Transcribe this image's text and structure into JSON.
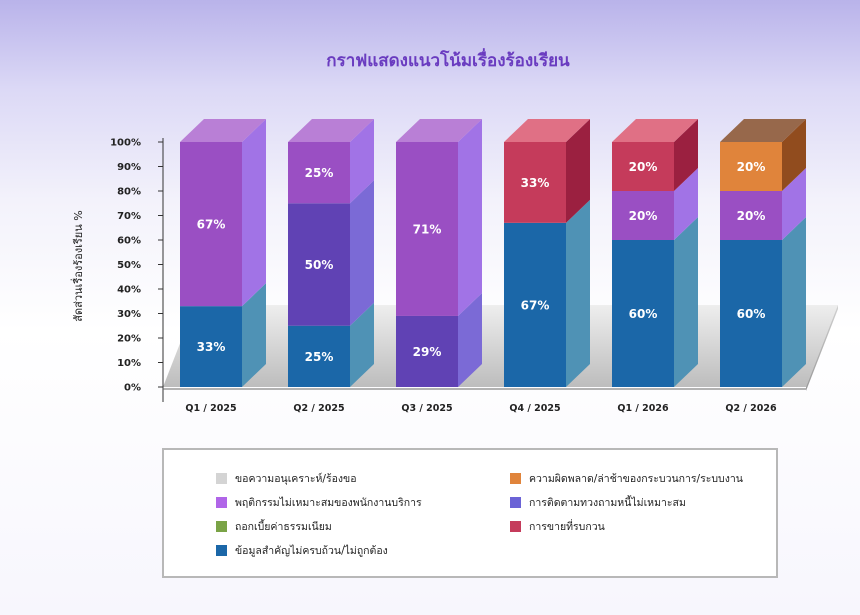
{
  "chart_data": {
    "type": "bar",
    "stacked": true,
    "title": "กราฟแสดงแนวโน้มเรื่องร้องเรียน",
    "ylabel": "สัดส่วนเรื่องร้องเรียน %",
    "xlabel": "",
    "ylim": [
      0,
      100
    ],
    "yticks": [
      "0%",
      "10%",
      "20%",
      "30%",
      "40%",
      "50%",
      "60%",
      "70%",
      "80%",
      "90%",
      "100%"
    ],
    "categories": [
      "Q1 / 2025",
      "Q2 / 2025",
      "Q3 / 2025",
      "Q4 / 2025",
      "Q1 / 2026",
      "Q2 / 2026"
    ],
    "series": [
      {
        "name": "ข้อมูลสำคัญไม่ครบถ้วน/ไม่ถูกต้อง",
        "color": "#1b67a8",
        "side": "#4f92b5",
        "values": [
          33,
          25,
          0,
          67,
          60,
          60
        ],
        "labels": [
          "33%",
          "25%",
          "",
          "67%",
          "60%",
          "60%"
        ]
      },
      {
        "name": "การติดตามทวงถามหนี้ไม่เหมาะสม",
        "color": "#6042b4",
        "side": "#7b6ad6",
        "values": [
          0,
          50,
          29,
          0,
          0,
          0
        ],
        "labels": [
          "",
          "50%",
          "29%",
          "",
          "",
          ""
        ]
      },
      {
        "name": "พฤติกรรมไม่เหมาะสมของพนักงานบริการ",
        "color": "#9a4fc3",
        "side": "#a173e6",
        "values": [
          67,
          25,
          71,
          0,
          20,
          20
        ],
        "labels": [
          "67%",
          "25%",
          "71%",
          "",
          "20%",
          "20%"
        ]
      },
      {
        "name": "การขายที่รบกวน",
        "color": "#c53b5b",
        "side": "#9b2040",
        "values": [
          0,
          0,
          0,
          33,
          20,
          0
        ],
        "labels": [
          "",
          "",
          "",
          "33%",
          "20%",
          ""
        ]
      },
      {
        "name": "ความผิดพลาด/ล่าช้าของกระบวนการ/ระบบงาน",
        "color": "#e0843b",
        "side": "#914c1e",
        "values": [
          0,
          0,
          0,
          0,
          0,
          20
        ],
        "labels": [
          "",
          "",
          "",
          "",
          "",
          "20%"
        ]
      }
    ],
    "legend": {
      "position": "bottom",
      "left": [
        {
          "name": "ขอความอนุเคราะห์/ร้องขอ",
          "color": "#d4d4d4"
        },
        {
          "name": "พฤติกรรมไม่เหมาะสมของพนักงานบริการ",
          "color": "#b065e8"
        },
        {
          "name": "ถอกเบี้ยค่าธรรมเนียม",
          "color": "#7aa346"
        },
        {
          "name": "ข้อมูลสำคัญไม่ครบถ้วน/ไม่ถูกต้อง",
          "color": "#1b67a8"
        }
      ],
      "right": [
        {
          "name": "ความผิดพลาด/ล่าช้าของกระบวนการ/ระบบงาน",
          "color": "#e0843b"
        },
        {
          "name": "การติดตามทวงถามหนี้ไม่เหมาะสม",
          "color": "#6b63d6"
        },
        {
          "name": "การขายที่รบกวน",
          "color": "#c53b5b"
        }
      ]
    },
    "grid": false
  }
}
